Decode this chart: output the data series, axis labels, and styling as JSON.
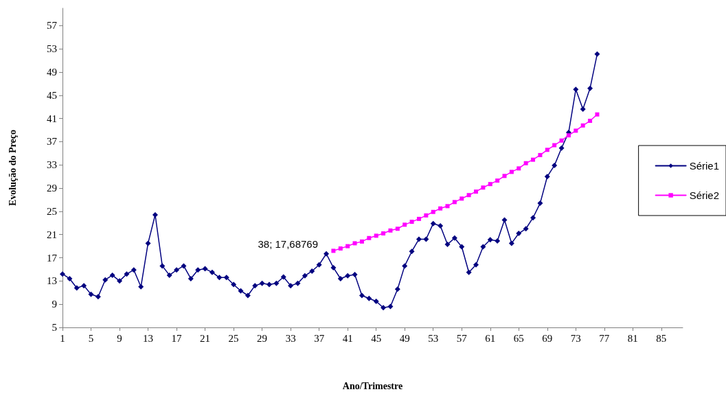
{
  "chart_data": {
    "type": "line",
    "xlabel": "Ano/Trimestre",
    "ylabel": "Evolução do Preço",
    "xlim": [
      1,
      88
    ],
    "xticks": [
      1,
      5,
      9,
      13,
      17,
      21,
      25,
      29,
      33,
      37,
      41,
      45,
      49,
      53,
      57,
      61,
      65,
      69,
      73,
      77,
      81,
      85
    ],
    "ylim": [
      5,
      60
    ],
    "yticks": [
      5,
      9,
      13,
      17,
      21,
      25,
      29,
      33,
      37,
      41,
      45,
      49,
      53,
      57
    ],
    "grid": false,
    "legend": "right",
    "line_style": "solid",
    "annotations": [
      {
        "text": "38; 17,68769",
        "x": 38,
        "y": 17.68769
      }
    ],
    "series": [
      {
        "name": "Série1",
        "color": "#000080",
        "marker": "diamond",
        "x": [
          1,
          2,
          3,
          4,
          5,
          6,
          7,
          8,
          9,
          10,
          11,
          12,
          13,
          14,
          15,
          16,
          17,
          18,
          19,
          20,
          21,
          22,
          23,
          24,
          25,
          26,
          27,
          28,
          29,
          30,
          31,
          32,
          33,
          34,
          35,
          36,
          37,
          38,
          39,
          40,
          41,
          42,
          43,
          44,
          45,
          46,
          47,
          48,
          49,
          50,
          51,
          52,
          53,
          54,
          55,
          56,
          57,
          58,
          59,
          60,
          61,
          62,
          63,
          64,
          65,
          66,
          67,
          68,
          69,
          70,
          71,
          72,
          73,
          74,
          75,
          76
        ],
        "values": [
          14.2,
          13.4,
          11.8,
          12.2,
          10.7,
          10.3,
          13.2,
          14.0,
          13.0,
          14.2,
          14.9,
          12.0,
          19.5,
          24.4,
          15.6,
          14.0,
          14.9,
          15.6,
          13.4,
          14.9,
          15.1,
          14.5,
          13.6,
          13.6,
          12.4,
          11.3,
          10.5,
          12.2,
          12.6,
          12.4,
          12.6,
          13.7,
          12.2,
          12.6,
          13.9,
          14.7,
          15.8,
          17.68769,
          15.3,
          13.4,
          13.9,
          14.1,
          10.5,
          10.0,
          9.5,
          8.4,
          8.6,
          11.6,
          15.6,
          18.1,
          20.2,
          20.2,
          22.9,
          22.5,
          19.3,
          20.4,
          18.9,
          14.5,
          15.8,
          18.9,
          20.1,
          19.9,
          23.5,
          19.5,
          21.2,
          22.0,
          23.9,
          26.4,
          31.0,
          32.9,
          35.9,
          38.6,
          46.0,
          42.6,
          46.2,
          52.1
        ]
      },
      {
        "name": "Série2",
        "color": "#ff00ff",
        "marker": "square",
        "x": [
          39,
          40,
          41,
          42,
          43,
          44,
          45,
          46,
          47,
          48,
          49,
          50,
          51,
          52,
          53,
          54,
          55,
          56,
          57,
          58,
          59,
          60,
          61,
          62,
          63,
          64,
          65,
          66,
          67,
          68,
          69,
          70,
          71,
          72,
          73,
          74,
          75,
          76
        ],
        "values": [
          18.2,
          18.6,
          19.0,
          19.5,
          19.8,
          20.4,
          20.8,
          21.2,
          21.7,
          22.0,
          22.7,
          23.2,
          23.7,
          24.3,
          24.9,
          25.5,
          25.9,
          26.6,
          27.2,
          27.8,
          28.4,
          29.1,
          29.7,
          30.3,
          31.1,
          31.8,
          32.4,
          33.3,
          33.9,
          34.7,
          35.6,
          36.4,
          37.2,
          38.1,
          38.9,
          39.8,
          40.6,
          41.7
        ]
      }
    ]
  }
}
